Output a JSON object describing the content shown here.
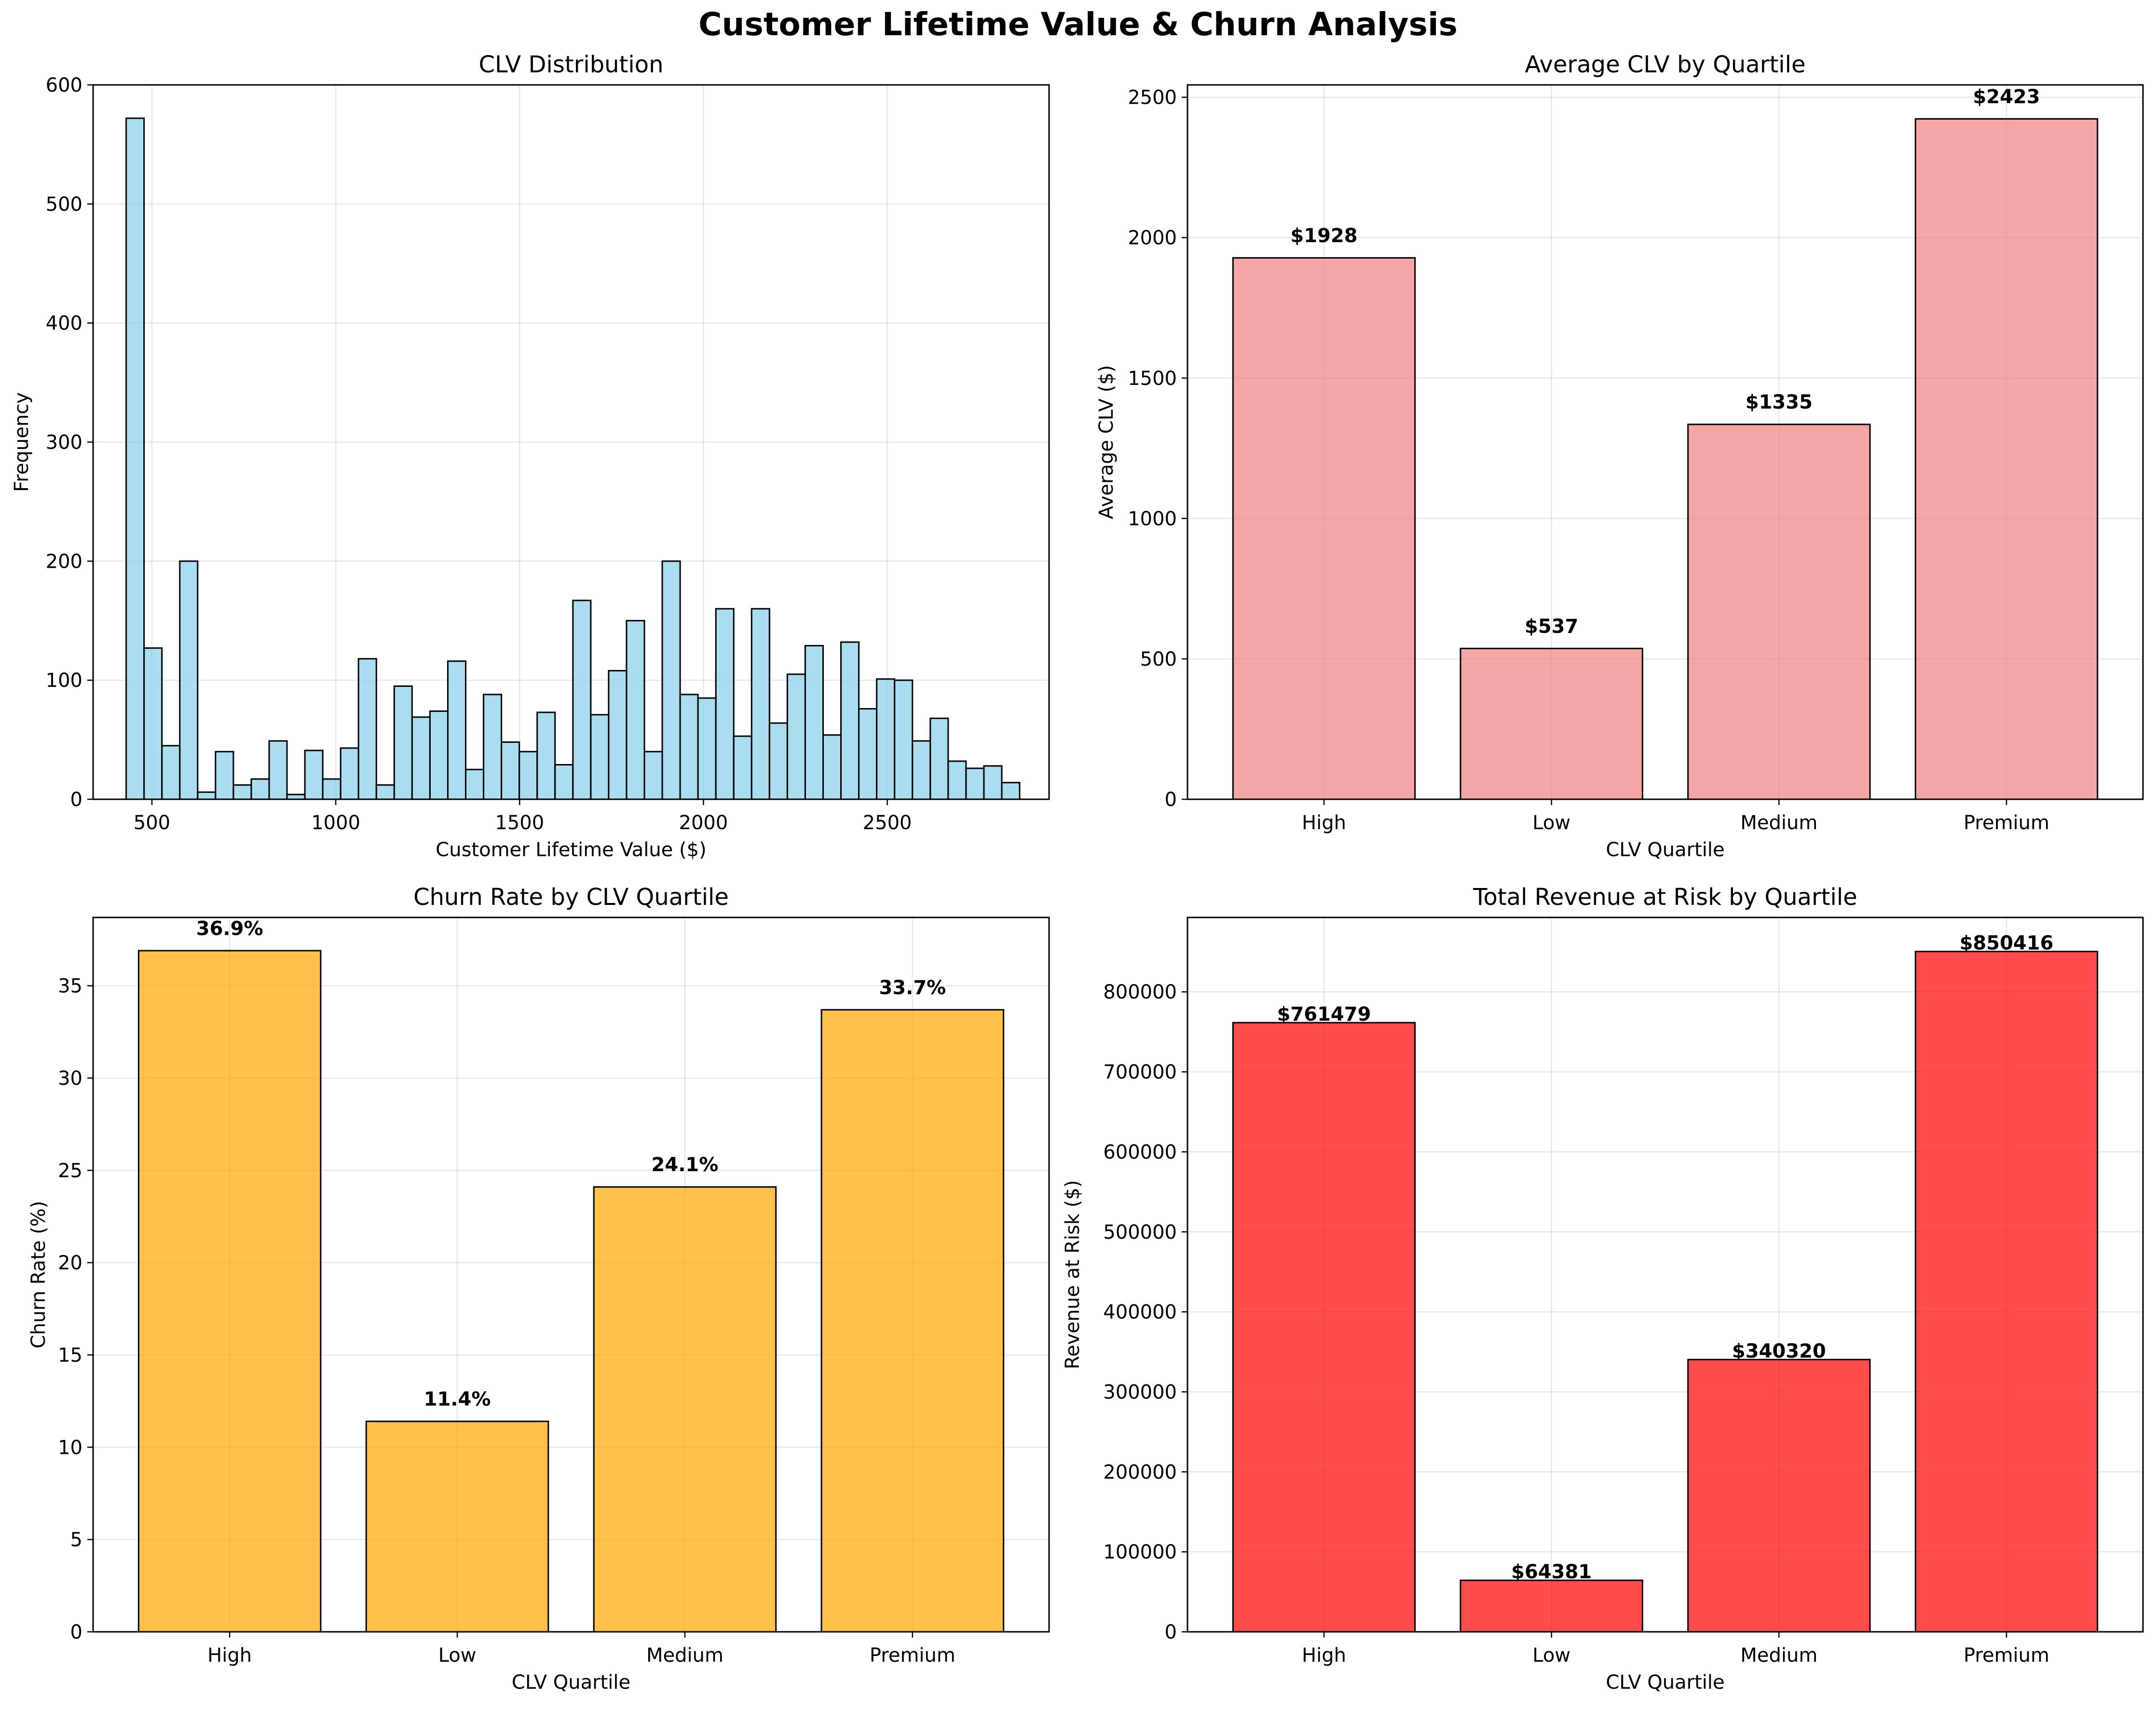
{
  "figure": {
    "title": "Customer Lifetime Value & Churn Analysis"
  },
  "chart_data": [
    {
      "type": "bar",
      "subtype": "histogram",
      "title": "CLV Distribution",
      "xlabel": "Customer Lifetime Value ($)",
      "ylabel": "Frequency",
      "xlim": [
        340,
        2940
      ],
      "ylim": [
        0,
        600
      ],
      "xticks": [
        500,
        1000,
        1500,
        2000,
        2500
      ],
      "yticks": [
        0,
        100,
        200,
        300,
        400,
        500,
        600
      ],
      "bin_start": 430,
      "bin_end": 2860,
      "frequencies": [
        572,
        127,
        45,
        200,
        6,
        40,
        12,
        17,
        49,
        4,
        41,
        17,
        43,
        118,
        12,
        95,
        69,
        74,
        116,
        25,
        88,
        48,
        40,
        73,
        29,
        167,
        71,
        108,
        150,
        40,
        200,
        88,
        85,
        160,
        53,
        160,
        64,
        105,
        129,
        54,
        132,
        76,
        101,
        100,
        49,
        68,
        32,
        26,
        28,
        14
      ],
      "bar_color": "#87CEEB",
      "grid": true
    },
    {
      "type": "bar",
      "title": "Average CLV by Quartile",
      "xlabel": "CLV Quartile",
      "ylabel": "Average CLV ($)",
      "categories": [
        "High",
        "Low",
        "Medium",
        "Premium"
      ],
      "values": [
        1928,
        537,
        1335,
        2423
      ],
      "data_labels": [
        "$1928",
        "$537",
        "$1335",
        "$2423"
      ],
      "ylim": [
        0,
        2544
      ],
      "yticks": [
        0,
        500,
        1000,
        1500,
        2000,
        2500
      ],
      "bar_color": "#F08080",
      "grid": true
    },
    {
      "type": "bar",
      "title": "Churn Rate by CLV Quartile",
      "xlabel": "CLV Quartile",
      "ylabel": "Churn Rate (%)",
      "categories": [
        "High",
        "Low",
        "Medium",
        "Premium"
      ],
      "values": [
        36.9,
        11.4,
        24.1,
        33.7
      ],
      "data_labels": [
        "36.9%",
        "11.4%",
        "24.1%",
        "33.7%"
      ],
      "ylim": [
        0,
        38.7
      ],
      "yticks": [
        0,
        5,
        10,
        15,
        20,
        25,
        30,
        35
      ],
      "bar_color": "#FFA500",
      "grid": true
    },
    {
      "type": "bar",
      "title": "Total Revenue at Risk by Quartile",
      "xlabel": "CLV Quartile",
      "ylabel": "Revenue at Risk ($)",
      "categories": [
        "High",
        "Low",
        "Medium",
        "Premium"
      ],
      "values": [
        761479,
        64381,
        340320,
        850416
      ],
      "data_labels": [
        "$761479",
        "$64381",
        "$340320",
        "$850416"
      ],
      "ylim": [
        0,
        893000
      ],
      "yticks": [
        0,
        100000,
        200000,
        300000,
        400000,
        500000,
        600000,
        700000,
        800000
      ],
      "bar_color": "#FF0000",
      "grid": true
    }
  ]
}
